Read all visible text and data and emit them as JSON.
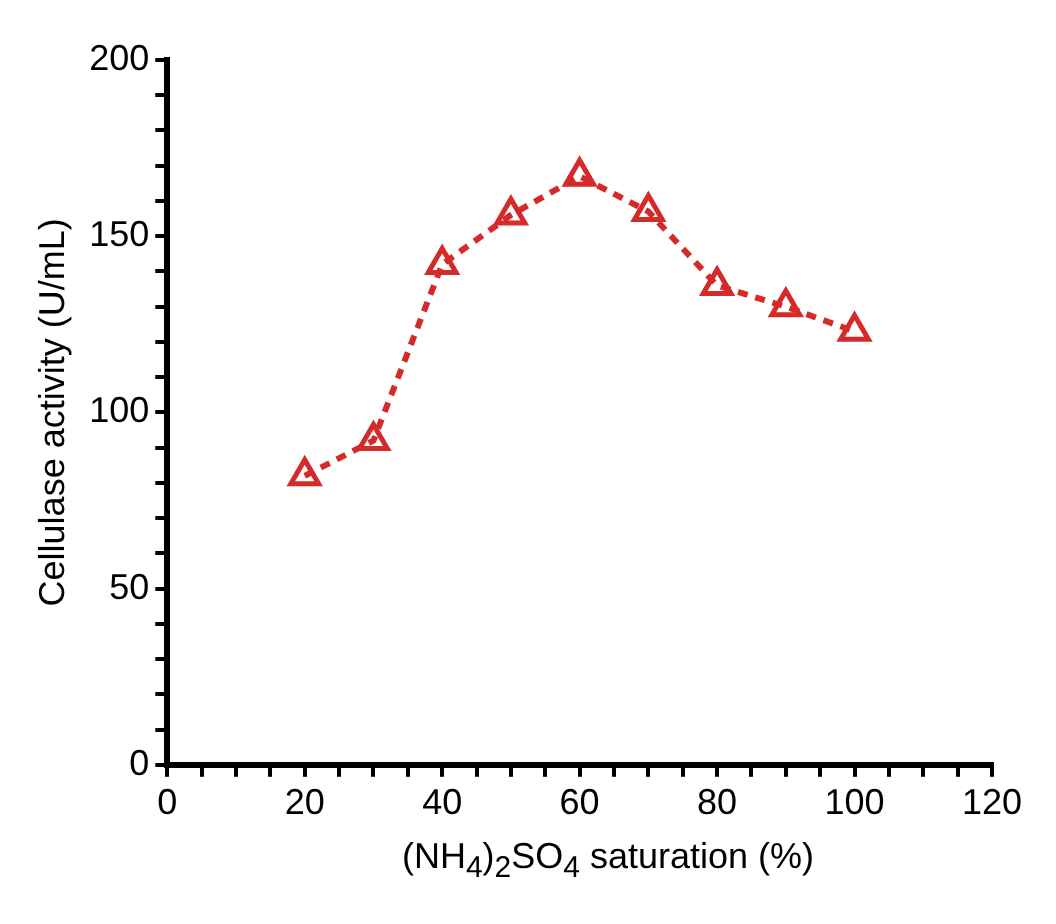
{
  "chart_data": {
    "type": "line",
    "xlabel": "(NH$_{4}$)$_{2}$SO$_{4}$ saturation (%)",
    "ylabel": "Cellulase activity (U/mL)",
    "x": [
      20,
      30,
      40,
      50,
      60,
      70,
      80,
      90,
      100
    ],
    "series": [
      {
        "color": "#d42a2a",
        "values": [
          82,
          92,
          142,
          156,
          167,
          157,
          136,
          130,
          123
        ]
      }
    ],
    "xlim": [
      0,
      120
    ],
    "xticks": [
      0,
      {
        "value": 5,
        "label": null
      },
      {
        "value": 10,
        "label": null
      },
      {
        "value": 15,
        "label": null
      },
      20,
      {
        "value": 25,
        "label": null
      },
      {
        "value": 30,
        "label": null
      },
      {
        "value": 35,
        "label": null
      },
      40,
      {
        "value": 45,
        "label": null
      },
      {
        "value": 50,
        "label": null
      },
      {
        "value": 55,
        "label": null
      },
      60,
      {
        "value": 65,
        "label": null
      },
      {
        "value": 70,
        "label": null
      },
      {
        "value": 75,
        "label": null
      },
      80,
      {
        "value": 85,
        "label": null
      },
      {
        "value": 90,
        "label": null
      },
      {
        "value": 95,
        "label": null
      },
      100,
      {
        "value": 105,
        "label": null
      },
      {
        "value": 110,
        "label": null
      },
      {
        "value": 115,
        "label": null
      },
      120
    ],
    "ylim": [
      0,
      200
    ],
    "yticks": [
      0,
      {
        "value": 10,
        "label": null
      },
      {
        "value": 20,
        "label": null
      },
      {
        "value": 30,
        "label": null
      },
      {
        "value": 40,
        "label": null
      },
      50,
      {
        "value": 60,
        "label": null
      },
      {
        "value": 70,
        "label": null
      },
      {
        "value": 80,
        "label": null
      },
      {
        "value": 90,
        "label": null
      },
      100,
      {
        "value": 110,
        "label": null
      },
      {
        "value": 120,
        "label": null
      },
      {
        "value": 130,
        "label": null
      },
      {
        "value": 140,
        "label": null
      },
      150,
      {
        "value": 160,
        "label": null
      },
      {
        "value": 170,
        "label": null
      },
      {
        "value": 180,
        "label": null
      },
      {
        "value": 190,
        "label": null
      },
      200
    ],
    "grid": false,
    "legend": false,
    "marker": "triangle",
    "line_style": "dashed"
  }
}
